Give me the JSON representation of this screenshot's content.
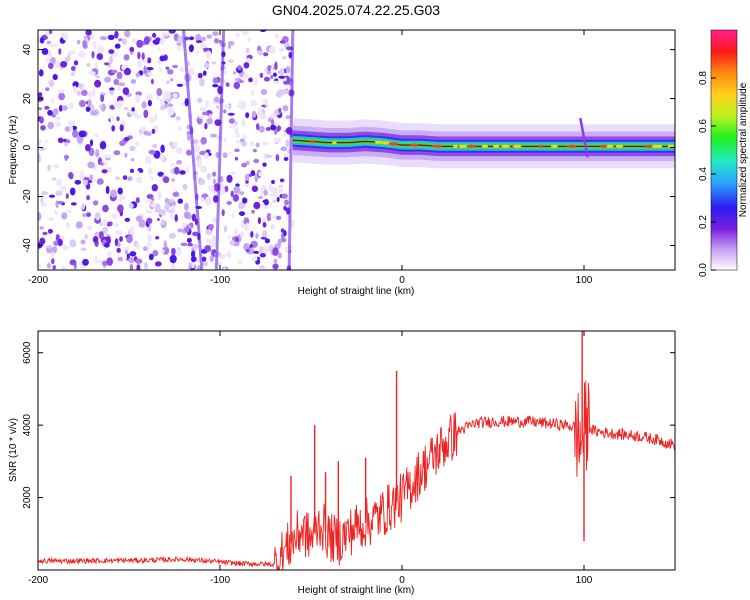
{
  "title": "GN04.2025.074.22.25.G03",
  "chart_data": [
    {
      "type": "heatmap",
      "xlabel": "Height of straight line (km)",
      "ylabel": "Frequency (Hz)",
      "xlim": [
        -200,
        150
      ],
      "ylim": [
        -50,
        48
      ],
      "xticks": [
        -200,
        -100,
        0,
        100
      ],
      "yticks": [
        -40,
        -20,
        0,
        20,
        40
      ],
      "colorbar": {
        "label": "Normalized spectral amplitude",
        "range": [
          0,
          1
        ],
        "ticks": [
          0.0,
          0.2,
          0.4,
          0.6,
          0.8
        ],
        "colors": [
          "#ffffff",
          "#c49bf2",
          "#7a1fe0",
          "#2c1cf0",
          "#2aa0ff",
          "#22e8c8",
          "#20f020",
          "#b8f020",
          "#ffd21a",
          "#ff8a10",
          "#ff1a1a",
          "#ff1f8c"
        ]
      },
      "noise_region_x": [
        -200,
        -60
      ],
      "signal_trace": {
        "x": [
          -60,
          -50,
          -40,
          -30,
          -20,
          -10,
          0,
          10,
          20,
          40,
          60,
          80,
          98,
          102,
          110,
          130,
          150
        ],
        "y": [
          3,
          2.5,
          2,
          2,
          2.5,
          2,
          1,
          1,
          0.5,
          0.5,
          0.5,
          0.5,
          0.5,
          0.5,
          0.5,
          0.5,
          0.5
        ]
      }
    },
    {
      "type": "line",
      "xlabel": "Height of straight line (km)",
      "ylabel": "SNR (10 * v/v)",
      "xlim": [
        -200,
        150
      ],
      "ylim": [
        0,
        6600
      ],
      "xticks": [
        -200,
        -100,
        0,
        100
      ],
      "yticks": [
        2000,
        4000,
        6000
      ],
      "series": [
        {
          "color": "#ee2222",
          "x": [
            -200,
            -180,
            -160,
            -140,
            -120,
            -100,
            -90,
            -80,
            -70,
            -65,
            -60,
            -55,
            -50,
            -45,
            -40,
            -35,
            -30,
            -25,
            -20,
            -15,
            -10,
            -5,
            0,
            10,
            20,
            30,
            40,
            50,
            60,
            70,
            80,
            90,
            95,
            98,
            100,
            102,
            105,
            110,
            120,
            130,
            140,
            150
          ],
          "y": [
            250,
            250,
            260,
            270,
            300,
            220,
            180,
            170,
            150,
            500,
            800,
            1100,
            850,
            1300,
            900,
            800,
            1000,
            1200,
            1300,
            1400,
            1600,
            1800,
            2000,
            2700,
            3300,
            3800,
            4050,
            4100,
            4100,
            4100,
            4050,
            4000,
            3950,
            3500,
            3800,
            4000,
            3850,
            3800,
            3750,
            3700,
            3600,
            3450
          ]
        }
      ],
      "spikes": [
        {
          "x": -61,
          "y": 2600
        },
        {
          "x": -48,
          "y": 4000
        },
        {
          "x": -42,
          "y": 2700
        },
        {
          "x": -35,
          "y": 3000
        },
        {
          "x": -20,
          "y": 3100
        },
        {
          "x": -3,
          "y": 5500
        },
        {
          "x": 12,
          "y": 3200
        },
        {
          "x": 99,
          "y": 6600
        },
        {
          "x": 100,
          "y": 800
        }
      ]
    }
  ]
}
